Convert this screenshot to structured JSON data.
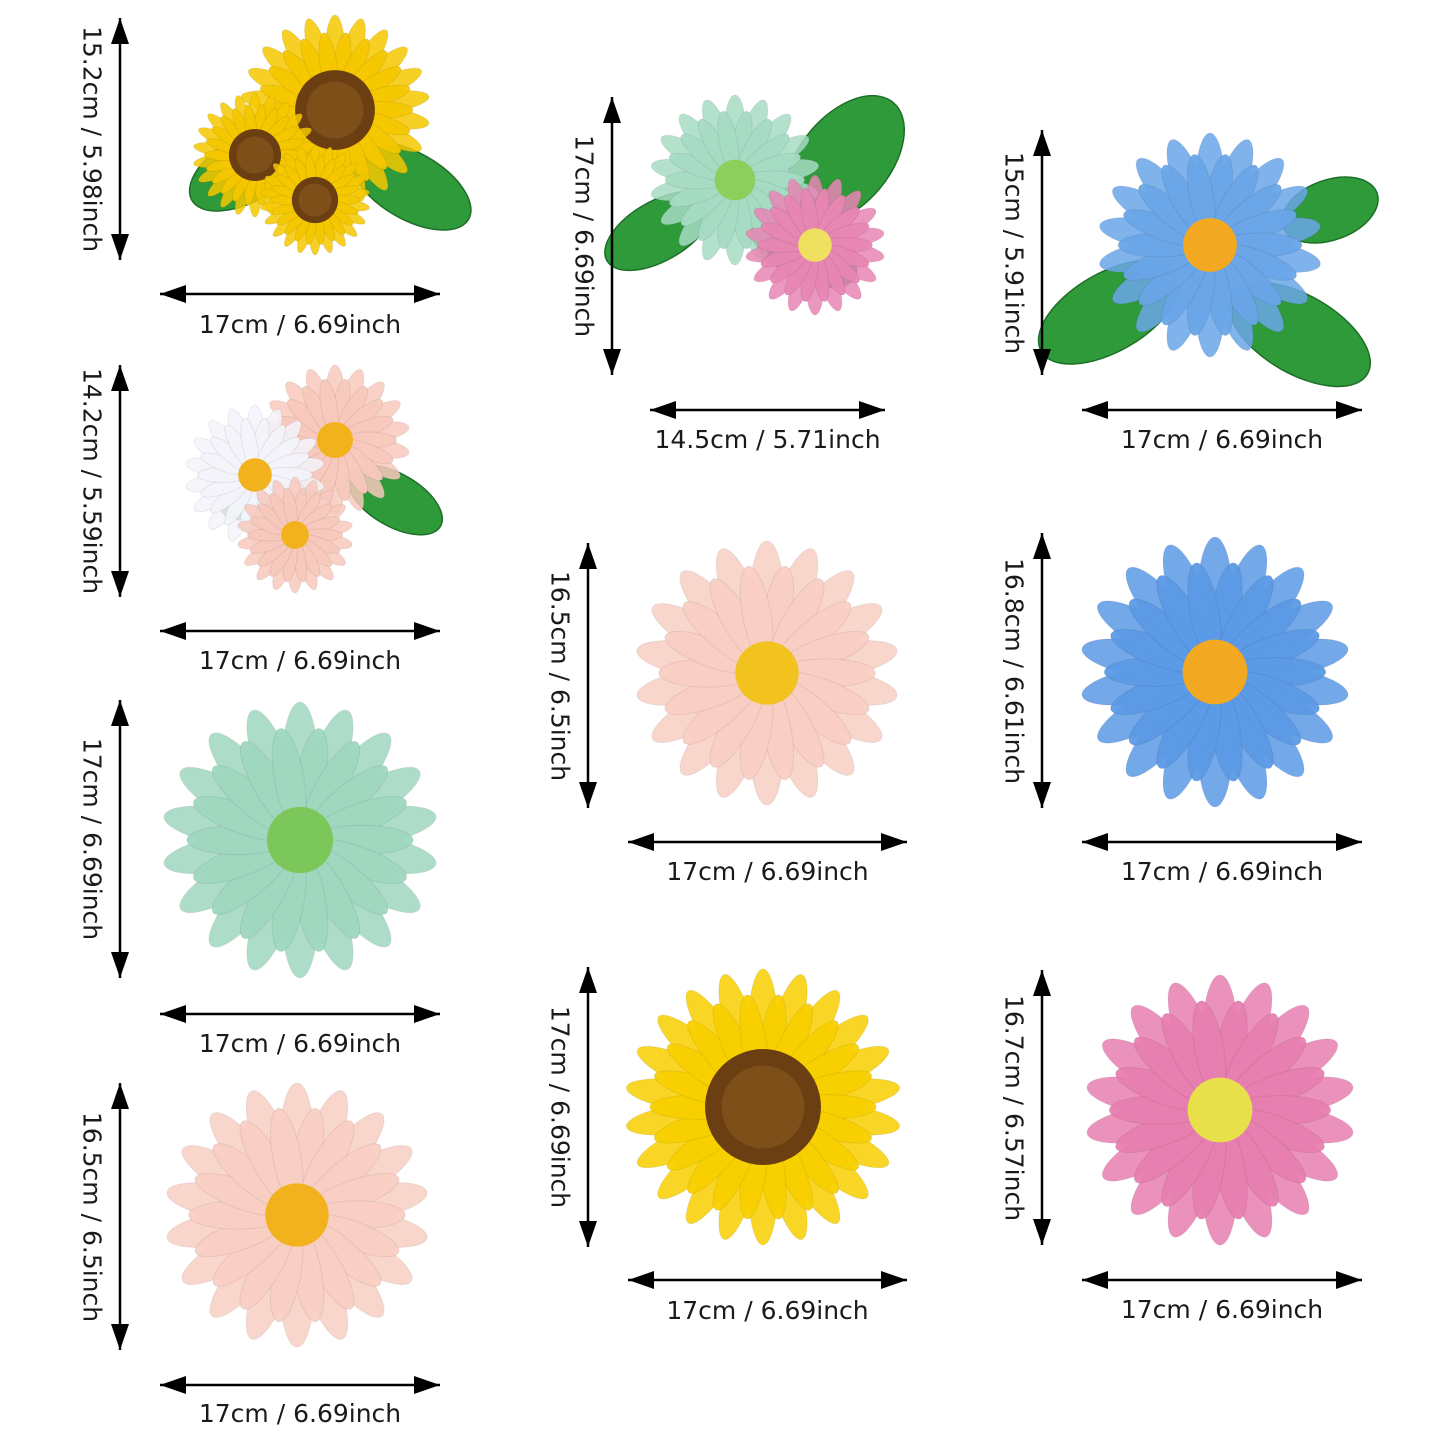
{
  "items": [
    {
      "name": "sunflower-cluster",
      "height_label": "15.2cm / 5.98inch",
      "width_label": "17cm / 6.69inch",
      "petal_color": "#f5c800",
      "center_color": "#6b3f12",
      "leaves": true
    },
    {
      "name": "pink-white-daisy-cluster",
      "height_label": "14.2cm / 5.59inch",
      "width_label": "17cm / 6.69inch",
      "petal_color": "#f8c9bd",
      "center_color": "#f2b21e",
      "leaves": true
    },
    {
      "name": "mint-daisy",
      "height_label": "17cm / 6.69inch",
      "width_label": "17cm / 6.69inch",
      "petal_color": "#9fd8bf",
      "center_color": "#7cc75a",
      "leaves": false
    },
    {
      "name": "peach-daisy",
      "height_label": "16.5cm / 6.5inch",
      "width_label": "17cm / 6.69inch",
      "petal_color": "#f9cfc4",
      "center_color": "#f2b21e",
      "leaves": false
    },
    {
      "name": "mint-pink-cluster",
      "height_label": "17cm / 6.69inch",
      "width_label": "14.5cm / 5.71inch",
      "petal_color": "#a6dcc4",
      "center_color": "#8ccf5c",
      "leaves": true
    },
    {
      "name": "peach-daisy-2",
      "height_label": "16.5cm / 6.5inch",
      "width_label": "17cm / 6.69inch",
      "petal_color": "#f9cfc4",
      "center_color": "#f2c21e",
      "leaves": false
    },
    {
      "name": "sunflower",
      "height_label": "17cm / 6.69inch",
      "width_label": "17cm / 6.69inch",
      "petal_color": "#f8d000",
      "center_color": "#6b3f12",
      "leaves": false
    },
    {
      "name": "blue-daisy-leaves",
      "height_label": "15cm / 5.91inch",
      "width_label": "17cm / 6.69inch",
      "petal_color": "#6aa6e8",
      "center_color": "#f2a820",
      "leaves": true
    },
    {
      "name": "blue-daisy",
      "height_label": "16.8cm / 6.61inch",
      "width_label": "17cm / 6.69inch",
      "petal_color": "#5b9ae6",
      "center_color": "#f2a820",
      "leaves": false
    },
    {
      "name": "pink-daisy",
      "height_label": "16.7cm / 6.57inch",
      "width_label": "17cm / 6.69inch",
      "petal_color": "#e77fb0",
      "center_color": "#e8e04a",
      "leaves": false
    }
  ]
}
